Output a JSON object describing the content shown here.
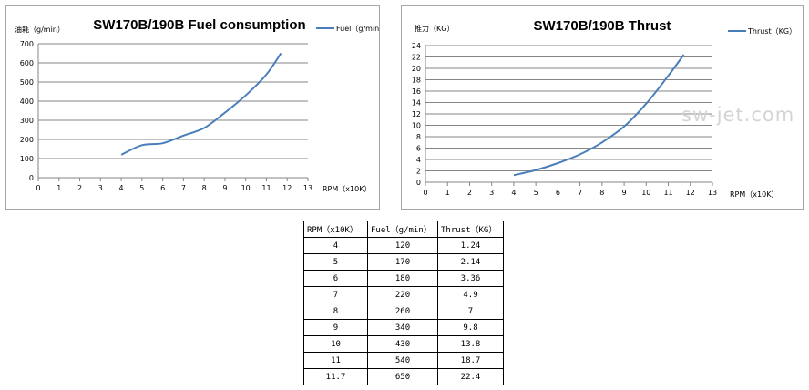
{
  "chart_data": [
    {
      "type": "line",
      "title": "SW170B/190B Fuel consumption",
      "ylabel": "油耗（g/min）",
      "xlabel": "RPM（x10K）",
      "xlim": [
        0,
        13
      ],
      "ylim": [
        0,
        700
      ],
      "xticks": [
        "0",
        "1",
        "2",
        "3",
        "4",
        "5",
        "6",
        "7",
        "8",
        "9",
        "10",
        "11",
        "12",
        "13"
      ],
      "yticks": [
        "0",
        "100",
        "200",
        "300",
        "400",
        "500",
        "600",
        "700"
      ],
      "grid": true,
      "legend_position": "top-right",
      "series": [
        {
          "name": "Fuel（g/min）",
          "color": "#4a7ebb",
          "x": [
            4,
            5,
            6,
            7,
            8,
            9,
            10,
            11,
            11.7
          ],
          "values": [
            120,
            170,
            180,
            220,
            260,
            340,
            430,
            540,
            650
          ]
        }
      ]
    },
    {
      "type": "line",
      "title": "SW170B/190B Thrust",
      "ylabel": "推力（KG）",
      "xlabel": "RPM（x10K）",
      "xlim": [
        0,
        13
      ],
      "ylim": [
        0,
        24
      ],
      "xticks": [
        "0",
        "1",
        "2",
        "3",
        "4",
        "5",
        "6",
        "7",
        "8",
        "9",
        "10",
        "11",
        "12",
        "13"
      ],
      "yticks": [
        "0",
        "2",
        "4",
        "6",
        "8",
        "10",
        "12",
        "14",
        "16",
        "18",
        "20",
        "22",
        "24"
      ],
      "grid": true,
      "legend_position": "top-right",
      "series": [
        {
          "name": "Thrust（KG）",
          "color": "#4a7ebb",
          "x": [
            4,
            5,
            6,
            7,
            8,
            9,
            10,
            11,
            11.7
          ],
          "values": [
            1.24,
            2.14,
            3.36,
            4.9,
            7,
            9.8,
            13.8,
            18.7,
            22.4
          ]
        }
      ]
    },
    {
      "type": "table",
      "columns": [
        "RPM（x10K）",
        "Fuel（g/min）",
        "Thrust（KG）"
      ],
      "rows": [
        [
          "4",
          "120",
          "1.24"
        ],
        [
          "5",
          "170",
          "2.14"
        ],
        [
          "6",
          "180",
          "3.36"
        ],
        [
          "7",
          "220",
          "4.9"
        ],
        [
          "8",
          "260",
          "7"
        ],
        [
          "9",
          "340",
          "9.8"
        ],
        [
          "10",
          "430",
          "13.8"
        ],
        [
          "11",
          "540",
          "18.7"
        ],
        [
          "11.7",
          "650",
          "22.4"
        ]
      ]
    }
  ],
  "watermark": "sw-jet.com"
}
